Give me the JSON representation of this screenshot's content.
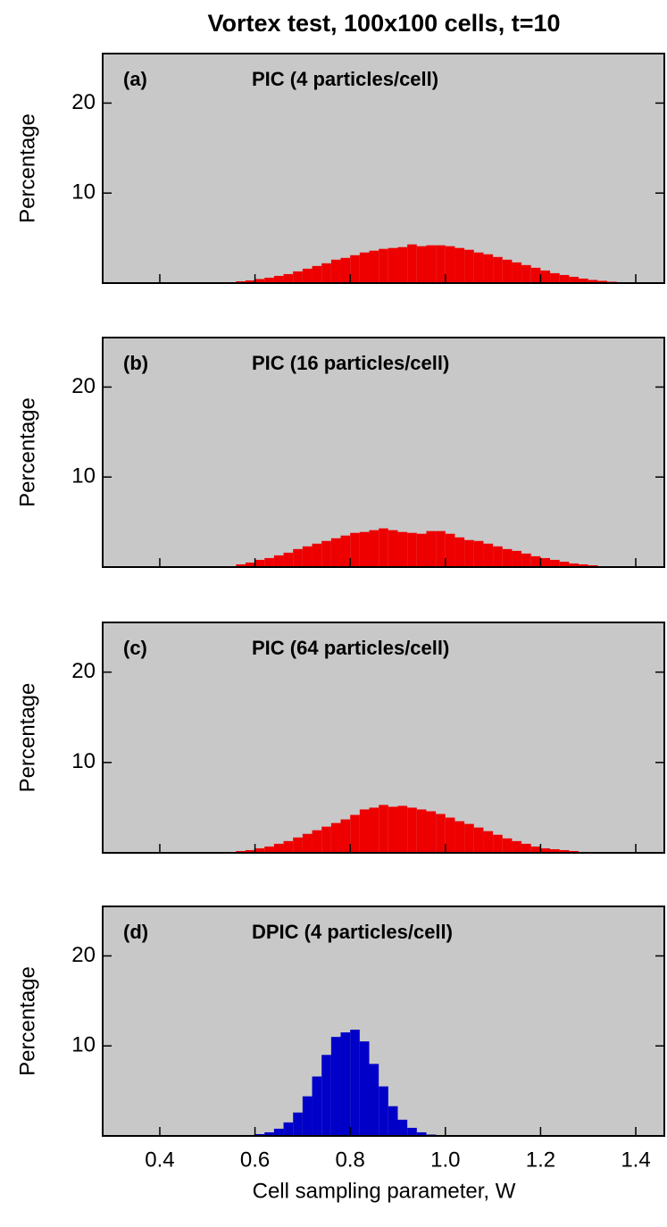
{
  "title": "Vortex test, 100x100 cells, t=10",
  "x_label": "Cell sampling parameter, W",
  "chart_data": [
    {
      "type": "histogram",
      "label": "(a)",
      "title": "PIC (4 particles/cell)",
      "y_label": "Percentage",
      "color": "#ee0000",
      "background": "#c8c8c8",
      "bins": [
        0.52,
        0.54,
        0.56,
        0.58,
        0.6,
        0.62,
        0.64,
        0.66,
        0.68,
        0.7,
        0.72,
        0.74,
        0.76,
        0.78,
        0.8,
        0.82,
        0.84,
        0.86,
        0.88,
        0.9,
        0.92,
        0.94,
        0.96,
        0.98,
        1.0,
        1.02,
        1.04,
        1.06,
        1.08,
        1.1,
        1.12,
        1.14,
        1.16,
        1.18,
        1.2,
        1.22,
        1.24,
        1.26,
        1.28,
        1.3,
        1.32,
        1.34,
        1.36,
        1.38,
        1.4,
        1.42
      ],
      "values": [
        0.05,
        0.1,
        0.2,
        0.3,
        0.45,
        0.6,
        0.8,
        1.0,
        1.3,
        1.6,
        1.9,
        2.2,
        2.6,
        2.8,
        3.1,
        3.4,
        3.6,
        3.8,
        3.9,
        4.0,
        4.3,
        4.1,
        4.2,
        4.2,
        4.1,
        3.9,
        3.7,
        3.4,
        3.2,
        2.9,
        2.6,
        2.3,
        2.0,
        1.7,
        1.4,
        1.1,
        0.9,
        0.7,
        0.5,
        0.35,
        0.25,
        0.15,
        0.1,
        0.05,
        0.02
      ],
      "xlim": [
        0.28,
        1.46
      ],
      "ylim": [
        0,
        25.5
      ],
      "yticks": [
        10,
        20
      ]
    },
    {
      "type": "histogram",
      "label": "(b)",
      "title": "PIC (16 particles/cell)",
      "y_label": "Percentage",
      "color": "#ee0000",
      "background": "#c8c8c8",
      "bins": [
        0.52,
        0.54,
        0.56,
        0.58,
        0.6,
        0.62,
        0.64,
        0.66,
        0.68,
        0.7,
        0.72,
        0.74,
        0.76,
        0.78,
        0.8,
        0.82,
        0.84,
        0.86,
        0.88,
        0.9,
        0.92,
        0.94,
        0.96,
        0.98,
        1.0,
        1.02,
        1.04,
        1.06,
        1.08,
        1.1,
        1.12,
        1.14,
        1.16,
        1.18,
        1.2,
        1.22,
        1.24,
        1.26,
        1.28,
        1.3,
        1.32,
        1.34,
        1.36,
        1.38,
        1.4,
        1.42
      ],
      "values": [
        0.05,
        0.1,
        0.3,
        0.5,
        0.8,
        1.0,
        1.3,
        1.6,
        2.0,
        2.3,
        2.6,
        2.9,
        3.2,
        3.5,
        3.8,
        3.9,
        4.1,
        4.3,
        4.1,
        3.9,
        3.8,
        3.7,
        4.0,
        4.0,
        3.7,
        3.3,
        3.0,
        2.9,
        2.6,
        2.3,
        2.0,
        1.8,
        1.5,
        1.2,
        1.0,
        0.8,
        0.6,
        0.4,
        0.3,
        0.2,
        0.1,
        0.08,
        0.05,
        0.02,
        0.01
      ],
      "xlim": [
        0.28,
        1.46
      ],
      "ylim": [
        0,
        25.5
      ],
      "yticks": [
        10,
        20
      ]
    },
    {
      "type": "histogram",
      "label": "(c)",
      "title": "PIC (64 particles/cell)",
      "y_label": "Percentage",
      "color": "#ee0000",
      "background": "#c8c8c8",
      "bins": [
        0.52,
        0.54,
        0.56,
        0.58,
        0.6,
        0.62,
        0.64,
        0.66,
        0.68,
        0.7,
        0.72,
        0.74,
        0.76,
        0.78,
        0.8,
        0.82,
        0.84,
        0.86,
        0.88,
        0.9,
        0.92,
        0.94,
        0.96,
        0.98,
        1.0,
        1.02,
        1.04,
        1.06,
        1.08,
        1.1,
        1.12,
        1.14,
        1.16,
        1.18,
        1.2,
        1.22,
        1.24,
        1.26,
        1.28,
        1.3,
        1.32,
        1.34,
        1.36,
        1.38,
        1.4,
        1.42
      ],
      "values": [
        0.05,
        0.1,
        0.2,
        0.3,
        0.5,
        0.7,
        1.0,
        1.3,
        1.7,
        2.1,
        2.5,
        2.9,
        3.3,
        3.7,
        4.2,
        4.8,
        5.0,
        5.3,
        5.1,
        5.2,
        5.0,
        4.8,
        4.6,
        4.3,
        3.9,
        3.5,
        3.2,
        2.8,
        2.4,
        2.0,
        1.6,
        1.3,
        1.0,
        0.7,
        0.5,
        0.4,
        0.3,
        0.2,
        0.1,
        0.05,
        0.02,
        0.01,
        0,
        0,
        0
      ],
      "xlim": [
        0.28,
        1.46
      ],
      "ylim": [
        0,
        25.5
      ],
      "yticks": [
        10,
        20
      ]
    },
    {
      "type": "histogram",
      "label": "(d)",
      "title": "DPIC (4 particles/cell)",
      "y_label": "Percentage",
      "color": "#0000c8",
      "background": "#c8c8c8",
      "bins": [
        0.56,
        0.58,
        0.6,
        0.62,
        0.64,
        0.66,
        0.68,
        0.7,
        0.72,
        0.74,
        0.76,
        0.78,
        0.8,
        0.82,
        0.84,
        0.86,
        0.88,
        0.9,
        0.92,
        0.94,
        0.96,
        0.98,
        1.0
      ],
      "values": [
        0.05,
        0.1,
        0.2,
        0.4,
        0.8,
        1.5,
        2.6,
        4.4,
        6.6,
        9.0,
        11.0,
        11.5,
        11.8,
        10.5,
        8.0,
        5.5,
        3.3,
        1.8,
        0.9,
        0.4,
        0.15,
        0.05
      ],
      "xlim": [
        0.28,
        1.46
      ],
      "ylim": [
        0,
        25.5
      ],
      "yticks": [
        10,
        20
      ],
      "xticks": [
        0.4,
        0.6,
        0.8,
        {
          "value": 1,
          "label": "1.0"
        },
        1.2,
        1.4
      ]
    }
  ]
}
